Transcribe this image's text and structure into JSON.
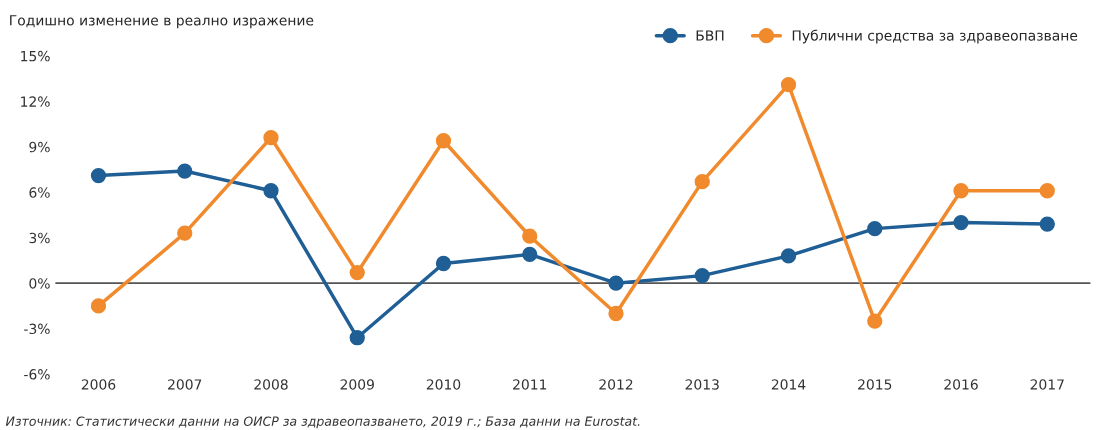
{
  "chart_data": {
    "type": "line",
    "title": "Годишно изменение в реално изражение",
    "categories": [
      "2006",
      "2007",
      "2008",
      "2009",
      "2010",
      "2011",
      "2012",
      "2013",
      "2014",
      "2015",
      "2016",
      "2017"
    ],
    "series": [
      {
        "name": "БВП",
        "color": "#1f5f95",
        "values": [
          7.1,
          7.4,
          6.1,
          -3.6,
          1.3,
          1.9,
          0.0,
          0.5,
          1.8,
          3.6,
          4.0,
          3.9
        ]
      },
      {
        "name": "Публични средства за здравеопазване",
        "color": "#f08a2c",
        "values": [
          -1.5,
          3.3,
          9.6,
          0.7,
          9.4,
          3.1,
          -2.0,
          6.7,
          13.1,
          -2.5,
          6.1,
          6.1
        ]
      }
    ],
    "ylim": [
      -6,
      15
    ],
    "yticks": [
      {
        "value": -6,
        "label": "-6%"
      },
      {
        "value": -3,
        "label": "-3%"
      },
      {
        "value": 0,
        "label": "0%"
      },
      {
        "value": 3,
        "label": "3%"
      },
      {
        "value": 6,
        "label": "6%"
      },
      {
        "value": 9,
        "label": "9%"
      },
      {
        "value": 12,
        "label": "12%"
      },
      {
        "value": 15,
        "label": "15%"
      }
    ],
    "ref_lines": [
      {
        "axis": "y",
        "value": 0,
        "color": "#555555"
      }
    ],
    "marker": "circle",
    "line_style": "solid",
    "grid": false,
    "legend": "top right",
    "annotations": [
      "Източник: Статистически данни на ОИСР за здравеопазването, 2019 г.; База данни на Eurostat."
    ]
  }
}
